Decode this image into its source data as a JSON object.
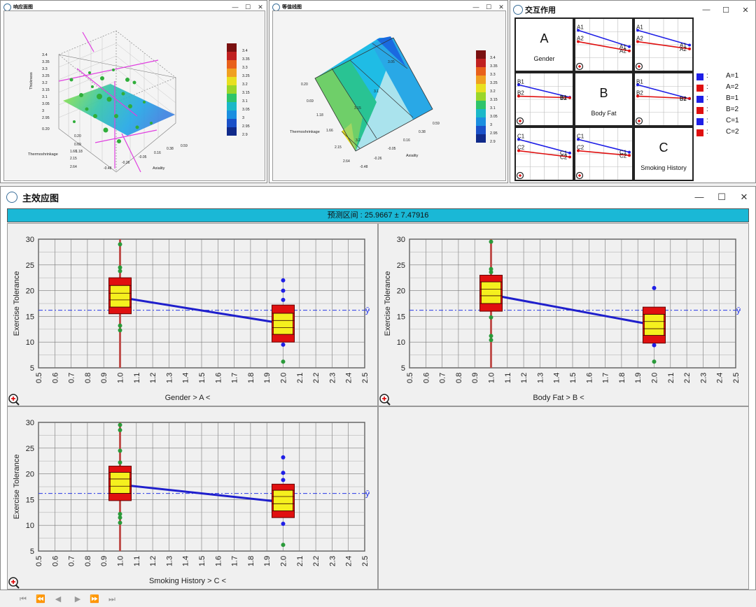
{
  "windows": {
    "response_surface": {
      "title": "响应面图"
    },
    "contour": {
      "title": "等值线图"
    },
    "interaction": {
      "title": "交互作用"
    },
    "main_effects": {
      "title": "主效应图",
      "banner": "预测区间 : 25.9667 ± 7.47916"
    }
  },
  "window_controls": {
    "minimize": "—",
    "maximize": "☐",
    "close": "✕"
  },
  "surface_plot": {
    "z_label": "Thickness",
    "x_label": "Thermoshrinkage",
    "y_label": "Axiality",
    "z_ticks": [
      "3.4",
      "3.35",
      "3.3",
      "3.25",
      "3.2",
      "3.15",
      "3.1",
      "3.05",
      "3",
      "2.95",
      "0.20"
    ],
    "x_ticks": [
      "0.20",
      "0.69",
      "1.18",
      "1.66",
      "2.15",
      "2.64"
    ],
    "y_ticks": [
      "-0.48",
      "-0.26",
      "-0.05",
      "0.16",
      "0.38",
      "0.59"
    ],
    "colorbar_ticks": [
      "3.4",
      "3.35",
      "3.3",
      "3.25",
      "3.2",
      "3.15",
      "3.1",
      "3.05",
      "3",
      "2.95",
      "2.9"
    ]
  },
  "contour_plot": {
    "x_label": "Thermoshrinkage",
    "y_label": "Axiality",
    "x_ticks": [
      "0.20",
      "0.69",
      "1.18",
      "1.66",
      "2.15",
      "2.64"
    ],
    "y_ticks": [
      "-0.48",
      "-0.26",
      "-0.05",
      "0.16",
      "0.38",
      "0.59"
    ],
    "contour_labels": [
      "3.05",
      "3.1",
      "3.15",
      "3.2"
    ],
    "colorbar_ticks": [
      "3.4",
      "3.35",
      "3.3",
      "3.25",
      "3.2",
      "3.15",
      "3.1",
      "3.05",
      "3",
      "2.95",
      "2.9"
    ]
  },
  "interaction": {
    "factors": [
      {
        "letter": "A",
        "name": "Gender"
      },
      {
        "letter": "B",
        "name": "Body Fat"
      },
      {
        "letter": "C",
        "name": "Smoking History"
      }
    ],
    "legend": [
      {
        "color": "#1f1fe6",
        "sep": ":",
        "label": "A=1"
      },
      {
        "color": "#e01010",
        "sep": ":",
        "label": "A=2"
      },
      {
        "color": "#1f1fe6",
        "sep": ":",
        "label": "B=1"
      },
      {
        "color": "#e01010",
        "sep": ":",
        "label": "B=2"
      },
      {
        "color": "#1f1fe6",
        "sep": ":",
        "label": "C=1"
      },
      {
        "color": "#e01010",
        "sep": ":",
        "label": "C=2"
      }
    ],
    "cells": {
      "ab": {
        "blue": "A1",
        "red": "A2",
        "blue_end": [
          0.72,
          0.92
        ],
        "red_end": [
          0.6,
          0.78
        ]
      },
      "ac": {
        "blue": "A1",
        "red": "A2",
        "blue_end": [
          0.72,
          0.7
        ],
        "red_end": [
          0.6,
          0.5
        ]
      },
      "ba": {
        "blue": "B1",
        "red": "B2",
        "blue_end": [
          0.75,
          0.25
        ],
        "red_end": [
          0.42,
          0.35
        ]
      },
      "bc": {
        "blue": "B1",
        "red": "B2",
        "blue_end": [
          0.75,
          0.45
        ],
        "red_end": [
          0.42,
          0.45
        ]
      },
      "ca": {
        "blue": "C1",
        "red": "C2",
        "blue_end": [
          0.72,
          0.52
        ],
        "red_end": [
          0.62,
          0.28
        ]
      },
      "cb": {
        "blue": "C1",
        "red": "C2",
        "blue_end": [
          0.75,
          0.3
        ],
        "red_end": [
          0.55,
          0.32
        ]
      }
    }
  },
  "chart_data": [
    {
      "type": "box",
      "title": "",
      "xlabel": "Gender    > A <",
      "ylabel": "Exercise Tolerance",
      "xlim": [
        0.5,
        2.5
      ],
      "ylim": [
        5,
        30
      ],
      "xticks": [
        "0.5",
        "0.6",
        "0.7",
        "0.8",
        "0.9",
        "1.0",
        "1.1",
        "1.2",
        "1.3",
        "1.4",
        "1.5",
        "1.6",
        "1.7",
        "1.8",
        "1.9",
        "2.0",
        "2.1",
        "2.2",
        "2.3",
        "2.4",
        "2.5"
      ],
      "yticks": [
        "5",
        "10",
        "15",
        "20",
        "25",
        "30"
      ],
      "mean_line": 16.2,
      "mean_label": "ȳ",
      "boxes": [
        {
          "x": 1.0,
          "q1": 15.5,
          "q3": 22.5,
          "lines": [
            16.8,
            18.2,
            19.5,
            21.0
          ],
          "points_blue": [],
          "points_green": [
            29,
            24.5,
            23.8,
            13.2,
            12.3
          ]
        },
        {
          "x": 2.0,
          "q1": 10.0,
          "q3": 17.2,
          "lines": [
            11.5,
            12.8,
            14.2,
            15.6
          ],
          "points_blue": [
            22,
            20,
            18.2,
            9.5
          ],
          "points_green": [
            6.2
          ]
        }
      ],
      "means": [
        18.7,
        13.6
      ]
    },
    {
      "type": "box",
      "title": "",
      "xlabel": "Body Fat    > B <",
      "ylabel": "Exercise Tolerance",
      "xlim": [
        0.5,
        2.5
      ],
      "ylim": [
        5,
        30
      ],
      "xticks": [
        "0.5",
        "0.6",
        "0.7",
        "0.8",
        "0.9",
        "1.0",
        "1.1",
        "1.2",
        "1.3",
        "1.4",
        "1.5",
        "1.6",
        "1.7",
        "1.8",
        "1.9",
        "2.0",
        "2.1",
        "2.2",
        "2.3",
        "2.4",
        "2.5"
      ],
      "yticks": [
        "5",
        "10",
        "15",
        "20",
        "25",
        "30"
      ],
      "mean_line": 16.2,
      "mean_label": "ȳ",
      "boxes": [
        {
          "x": 1.0,
          "q1": 16.0,
          "q3": 23.0,
          "lines": [
            17.5,
            19.0,
            20.3,
            21.7
          ],
          "points_blue": [],
          "points_green": [
            29.5,
            24.2,
            23.6,
            14.8,
            11.2,
            10.4
          ]
        },
        {
          "x": 2.0,
          "q1": 9.8,
          "q3": 16.8,
          "lines": [
            11.3,
            12.6,
            14.0,
            15.4
          ],
          "points_blue": [
            20.5,
            9.4
          ],
          "points_green": [
            6.2
          ]
        }
      ],
      "means": [
        19.2,
        13.3
      ]
    },
    {
      "type": "box",
      "title": "",
      "xlabel": "Smoking History    > C <",
      "ylabel": "Exercise Tolerance",
      "xlim": [
        0.5,
        2.5
      ],
      "ylim": [
        5,
        30
      ],
      "xticks": [
        "0.5",
        "0.6",
        "0.7",
        "0.8",
        "0.9",
        "1.0",
        "1.1",
        "1.2",
        "1.3",
        "1.4",
        "1.5",
        "1.6",
        "1.7",
        "1.8",
        "1.9",
        "2.0",
        "2.1",
        "2.2",
        "2.3",
        "2.4",
        "2.5"
      ],
      "yticks": [
        "5",
        "10",
        "15",
        "20",
        "25",
        "30"
      ],
      "mean_line": 16.2,
      "mean_label": "ȳ",
      "boxes": [
        {
          "x": 1.0,
          "q1": 14.8,
          "q3": 21.5,
          "lines": [
            16.2,
            17.6,
            19.0,
            20.3
          ],
          "points_blue": [],
          "points_green": [
            29.5,
            28.5,
            24.5,
            22.2,
            12.2,
            11.5,
            10.5
          ]
        },
        {
          "x": 2.0,
          "q1": 11.5,
          "q3": 18.0,
          "lines": [
            12.8,
            14.2,
            15.6,
            16.8
          ],
          "points_blue": [
            23.2,
            20.2,
            18.8,
            10.3
          ],
          "points_green": [
            6.2
          ]
        }
      ],
      "means": [
        17.9,
        14.5
      ]
    }
  ],
  "navigation": {
    "first": "⏮",
    "prev_page": "⏪",
    "prev": "◀",
    "next": "▶",
    "next_page": "⏩",
    "last": "⏭"
  }
}
